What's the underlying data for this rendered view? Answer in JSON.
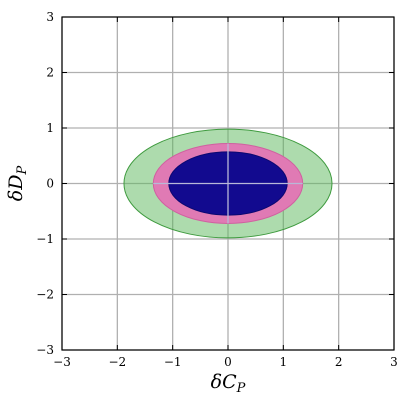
{
  "chart_data": {
    "type": "area",
    "xlabel": "δC",
    "xlabel_sub": "P",
    "ylabel": "δD",
    "ylabel_sub": "P",
    "xlim": [
      -3,
      3
    ],
    "ylim": [
      -3,
      3
    ],
    "xticks": [
      -3,
      -2,
      -1,
      0,
      1,
      2,
      3
    ],
    "yticks": [
      -3,
      -2,
      -1,
      0,
      1,
      2,
      3
    ],
    "xtick_labels": [
      "−3",
      "−2",
      "−1",
      "0",
      "1",
      "2",
      "3"
    ],
    "ytick_labels": [
      "−3",
      "−2",
      "−1",
      "0",
      "1",
      "2",
      "3"
    ],
    "grid": true,
    "series": [
      {
        "shape": "ellipse",
        "cx": 0,
        "cy": 0,
        "rx": 1.88,
        "ry": 0.98,
        "color": "#5cb85c",
        "opacity": 0.5,
        "stroke": "#3e9a3e"
      },
      {
        "shape": "ellipse",
        "cx": 0,
        "cy": 0,
        "rx": 1.35,
        "ry": 0.72,
        "color": "#e07ab4",
        "opacity": 1.0,
        "stroke": "#d060a0"
      },
      {
        "shape": "ellipse",
        "cx": 0,
        "cy": 0,
        "rx": 1.07,
        "ry": 0.57,
        "color": "#120a8f",
        "opacity": 1.0,
        "stroke": "#0a0870"
      }
    ]
  }
}
